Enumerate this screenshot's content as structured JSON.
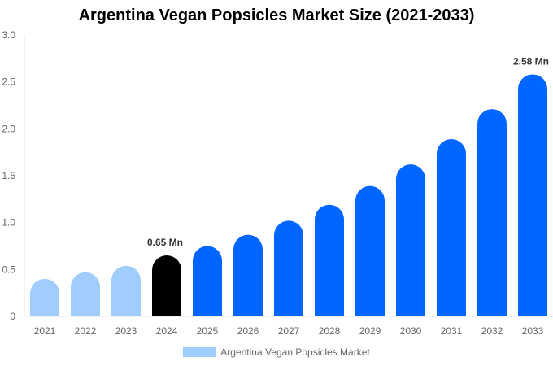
{
  "chart_data": {
    "type": "bar",
    "title": "Argentina Vegan Popsicles Market Size (2021-2033)",
    "categories": [
      "2021",
      "2022",
      "2023",
      "2024",
      "2025",
      "2026",
      "2027",
      "2028",
      "2029",
      "2030",
      "2031",
      "2032",
      "2033"
    ],
    "series": [
      {
        "name": "Argentina Vegan Popsicles Market",
        "values": [
          0.4,
          0.47,
          0.54,
          0.65,
          0.75,
          0.87,
          1.02,
          1.19,
          1.39,
          1.62,
          1.89,
          2.21,
          2.58
        ]
      }
    ],
    "data_labels": {
      "3": "0.65 Mn",
      "12": "2.58 Mn"
    },
    "ylim": [
      0,
      3.0
    ],
    "yticks": [
      "0",
      "0.5",
      "1.0",
      "1.5",
      "2.0",
      "2.5",
      "3.0"
    ],
    "xlabel": "",
    "ylabel": "",
    "grid": false,
    "legend_position": "bottom",
    "colors": {
      "historic": "#a0cdfc",
      "base_year": "#000000",
      "forecast": "#0066ff",
      "legend": "#a0cdfc"
    }
  }
}
